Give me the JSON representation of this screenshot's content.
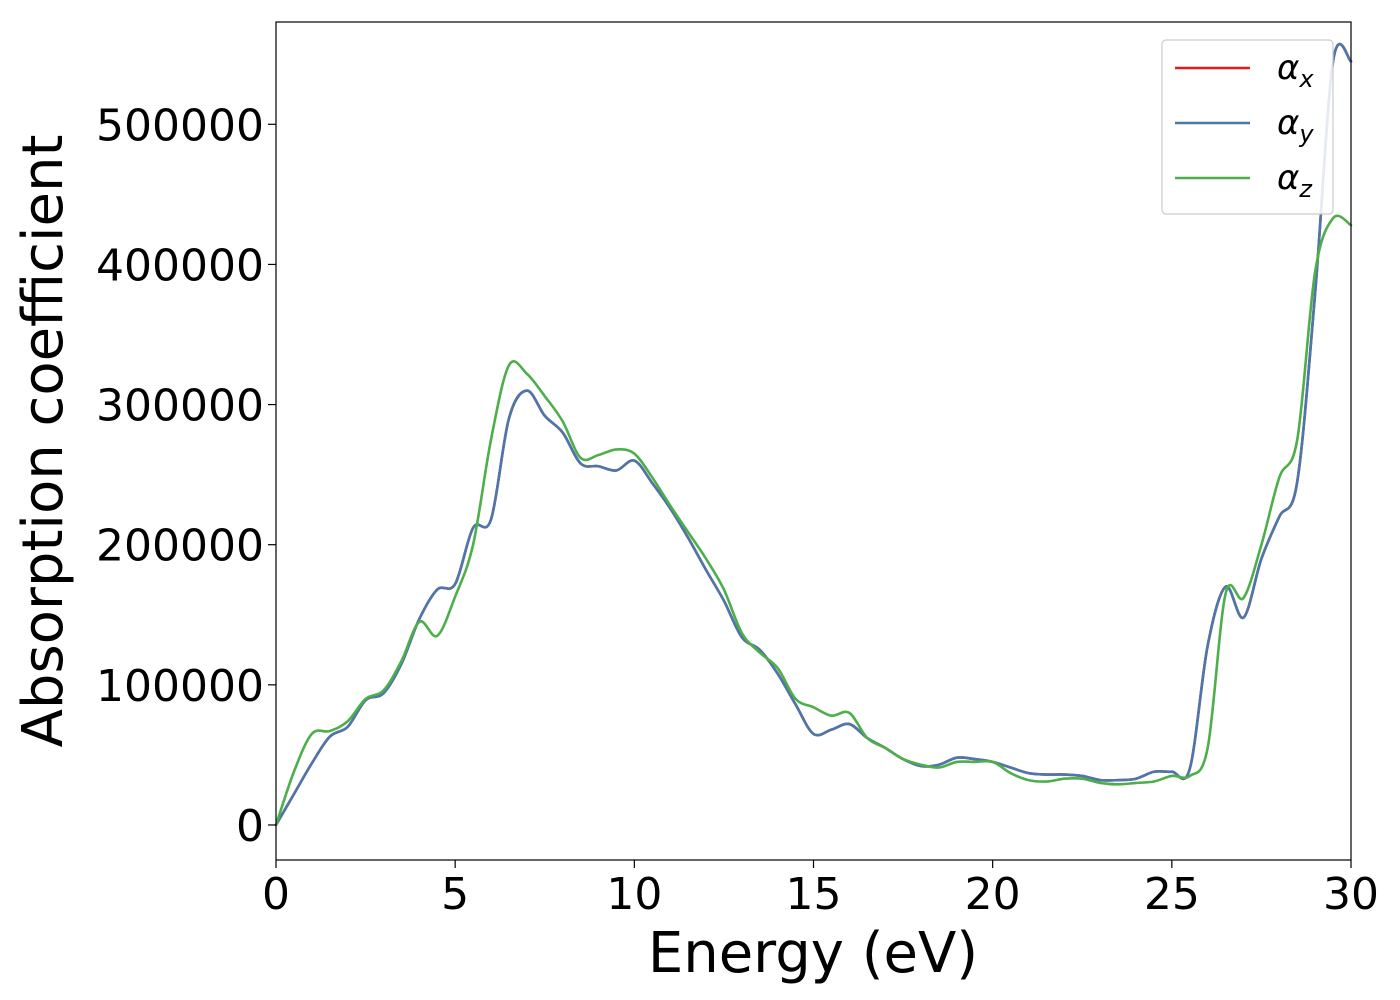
{
  "chart_data": {
    "type": "line",
    "title": "",
    "xlabel": "Energy (eV)",
    "ylabel": "Absorption coefficient",
    "xlim": [
      0,
      30
    ],
    "ylim": [
      -25000,
      573000
    ],
    "xticks": [
      0,
      5,
      10,
      15,
      20,
      25,
      30
    ],
    "xtick_labels": [
      "0",
      "5",
      "10",
      "15",
      "20",
      "25",
      "30"
    ],
    "yticks": [
      0,
      100000,
      200000,
      300000,
      400000,
      500000
    ],
    "ytick_labels": [
      "0",
      "100000",
      "200000",
      "300000",
      "400000",
      "500000"
    ],
    "grid": false,
    "legend_position": "top-right",
    "series": [
      {
        "name": "αx",
        "legend_base": "α",
        "legend_sub": "x",
        "color": "#e41a1c",
        "x": [
          0,
          0.5,
          1.0,
          1.5,
          2.0,
          2.5,
          3.0,
          3.5,
          4.0,
          4.5,
          5.0,
          5.5,
          6.0,
          6.5,
          7.0,
          7.5,
          8.0,
          8.5,
          9.0,
          9.5,
          10.0,
          10.5,
          11.0,
          11.5,
          12.0,
          12.5,
          13.0,
          13.5,
          14.0,
          14.5,
          15.0,
          15.5,
          16.0,
          16.5,
          17.0,
          17.5,
          18.0,
          18.5,
          19.0,
          19.5,
          20.0,
          20.5,
          21.0,
          21.5,
          22.0,
          22.5,
          23.0,
          23.5,
          24.0,
          24.5,
          25.0,
          25.5,
          26.0,
          26.5,
          27.0,
          27.5,
          28.0,
          28.5,
          29.0,
          29.5,
          30.0
        ],
        "values": [
          0,
          22000,
          44000,
          63000,
          70000,
          89000,
          94000,
          115000,
          147000,
          168000,
          172000,
          212000,
          218000,
          290000,
          310000,
          292000,
          280000,
          258000,
          256000,
          253000,
          260000,
          244000,
          226000,
          205000,
          182000,
          160000,
          134000,
          125000,
          108000,
          86000,
          65000,
          68000,
          72000,
          62000,
          55000,
          47000,
          42000,
          43000,
          48000,
          47000,
          45000,
          41000,
          37000,
          36000,
          36000,
          35000,
          32000,
          32000,
          33000,
          38000,
          38000,
          40000,
          128000,
          170000,
          148000,
          190000,
          220000,
          245000,
          380000,
          545000,
          545000
        ]
      },
      {
        "name": "αy",
        "legend_base": "α",
        "legend_sub": "y",
        "color": "#4a78ad",
        "x": [
          0,
          0.5,
          1.0,
          1.5,
          2.0,
          2.5,
          3.0,
          3.5,
          4.0,
          4.5,
          5.0,
          5.5,
          6.0,
          6.5,
          7.0,
          7.5,
          8.0,
          8.5,
          9.0,
          9.5,
          10.0,
          10.5,
          11.0,
          11.5,
          12.0,
          12.5,
          13.0,
          13.5,
          14.0,
          14.5,
          15.0,
          15.5,
          16.0,
          16.5,
          17.0,
          17.5,
          18.0,
          18.5,
          19.0,
          19.5,
          20.0,
          20.5,
          21.0,
          21.5,
          22.0,
          22.5,
          23.0,
          23.5,
          24.0,
          24.5,
          25.0,
          25.5,
          26.0,
          26.5,
          27.0,
          27.5,
          28.0,
          28.5,
          29.0,
          29.5,
          30.0
        ],
        "values": [
          0,
          22000,
          44000,
          63000,
          70000,
          89000,
          94000,
          115000,
          147000,
          168000,
          172000,
          212000,
          218000,
          290000,
          310000,
          292000,
          280000,
          258000,
          256000,
          253000,
          260000,
          244000,
          226000,
          205000,
          182000,
          160000,
          134000,
          125000,
          108000,
          86000,
          65000,
          68000,
          72000,
          62000,
          55000,
          47000,
          42000,
          43000,
          48000,
          47000,
          45000,
          41000,
          37000,
          36000,
          36000,
          35000,
          32000,
          32000,
          33000,
          38000,
          38000,
          40000,
          128000,
          170000,
          148000,
          190000,
          220000,
          245000,
          380000,
          545000,
          545000
        ]
      },
      {
        "name": "αz",
        "legend_base": "α",
        "legend_sub": "z",
        "color": "#4daf4a",
        "x": [
          0,
          0.5,
          1.0,
          1.5,
          2.0,
          2.5,
          3.0,
          3.5,
          4.0,
          4.5,
          5.0,
          5.5,
          6.0,
          6.5,
          7.0,
          7.5,
          8.0,
          8.5,
          9.0,
          9.5,
          10.0,
          10.5,
          11.0,
          11.5,
          12.0,
          12.5,
          13.0,
          13.5,
          14.0,
          14.5,
          15.0,
          15.5,
          16.0,
          16.5,
          17.0,
          17.5,
          18.0,
          18.5,
          19.0,
          19.5,
          20.0,
          20.5,
          21.0,
          21.5,
          22.0,
          22.5,
          23.0,
          23.5,
          24.0,
          24.5,
          25.0,
          25.5,
          26.0,
          26.5,
          27.0,
          27.5,
          28.0,
          28.5,
          29.0,
          29.5,
          30.0
        ],
        "values": [
          0,
          38000,
          65000,
          67000,
          74000,
          90000,
          96000,
          117000,
          145000,
          135000,
          163000,
          200000,
          275000,
          328000,
          322000,
          306000,
          288000,
          262000,
          264000,
          268000,
          265000,
          248000,
          228000,
          209000,
          190000,
          168000,
          137000,
          123000,
          112000,
          90000,
          84000,
          78000,
          80000,
          62000,
          55000,
          47000,
          43000,
          41000,
          45000,
          45000,
          45000,
          37000,
          32000,
          31000,
          33000,
          33000,
          30000,
          29000,
          30000,
          31000,
          35000,
          35000,
          55000,
          165000,
          162000,
          200000,
          248000,
          275000,
          395000,
          433000,
          428000
        ]
      }
    ]
  }
}
